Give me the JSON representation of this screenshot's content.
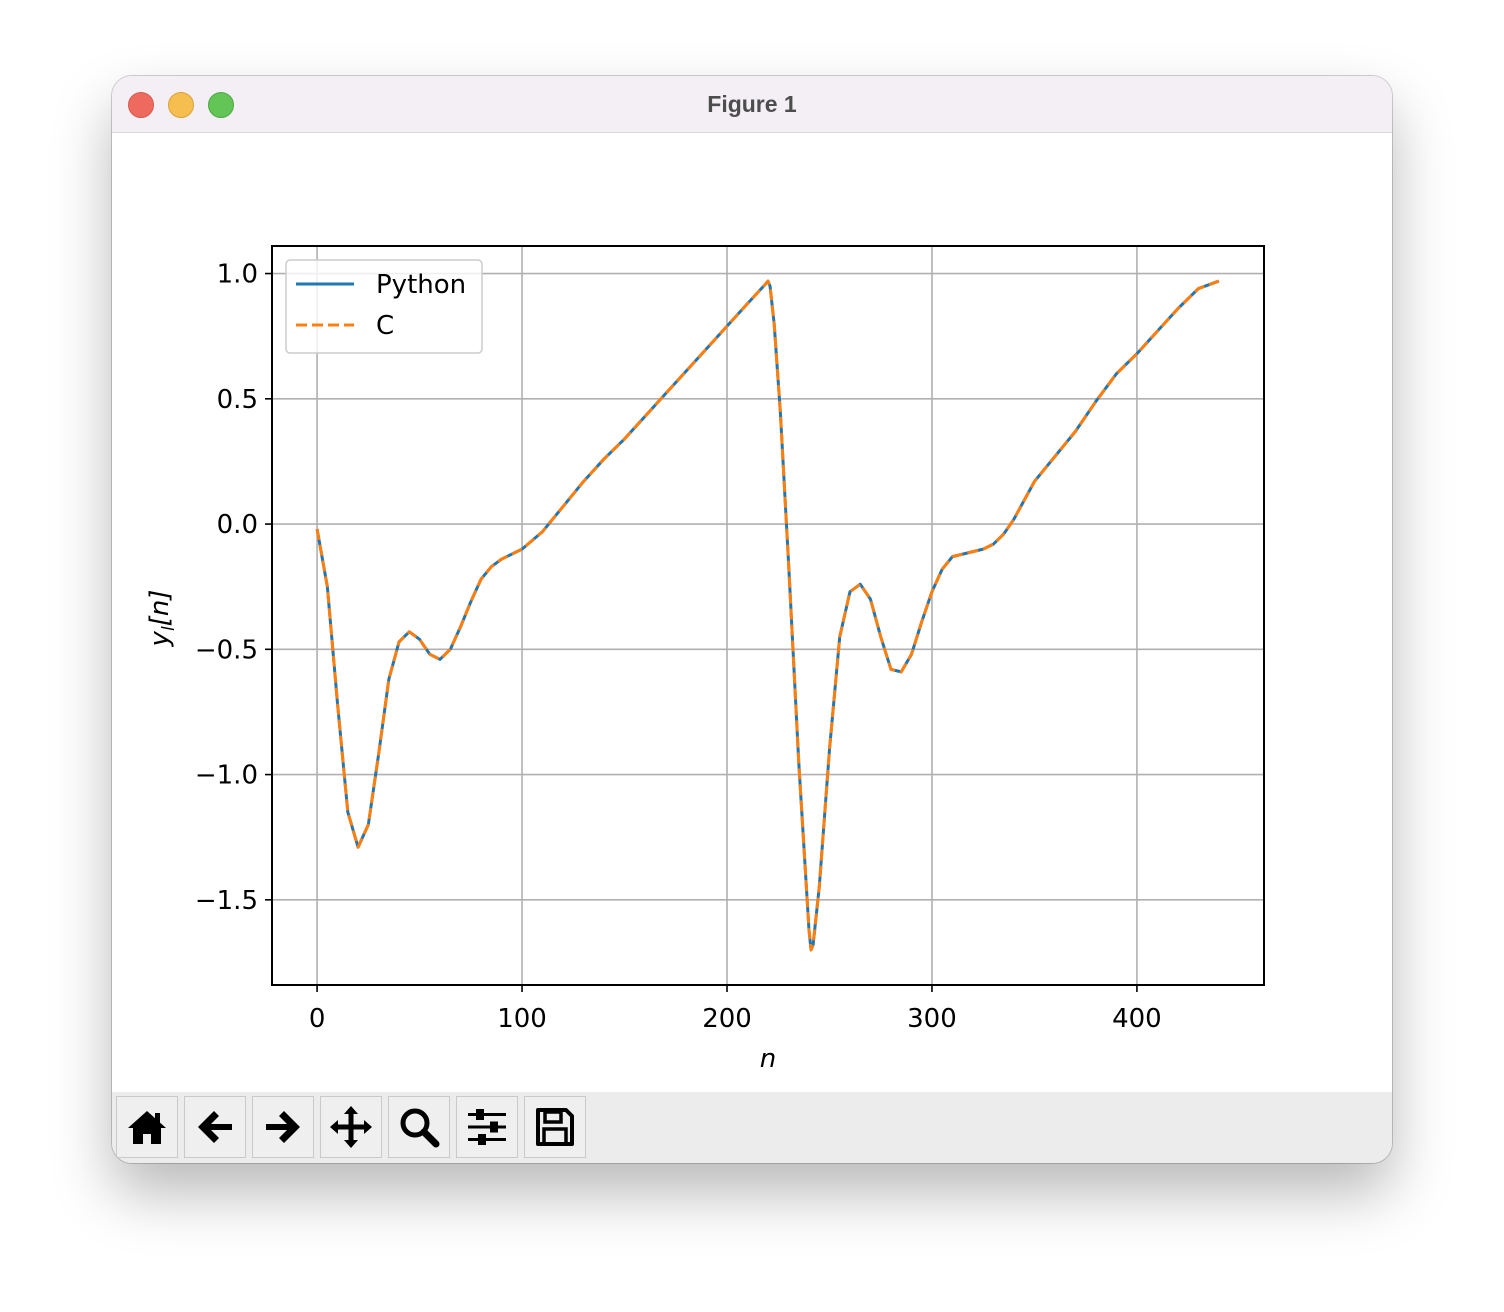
{
  "window": {
    "title": "Figure 1"
  },
  "toolbar": {
    "buttons": [
      {
        "name": "home-button",
        "icon": "home-icon"
      },
      {
        "name": "back-button",
        "icon": "arrow-left-icon"
      },
      {
        "name": "forward-button",
        "icon": "arrow-right-icon"
      },
      {
        "name": "pan-button",
        "icon": "move-icon"
      },
      {
        "name": "zoom-button",
        "icon": "magnifier-icon"
      },
      {
        "name": "configure-subplots-button",
        "icon": "sliders-icon"
      },
      {
        "name": "save-button",
        "icon": "floppy-disk-icon"
      }
    ]
  },
  "chart_data": {
    "type": "line",
    "title": "",
    "xlabel": "n",
    "ylabel_main": "y",
    "ylabel_sub": "l",
    "ylabel_tail": "[n]",
    "xlim": [
      -22,
      462
    ],
    "ylim": [
      -1.84,
      1.11
    ],
    "xticks": [
      0,
      100,
      200,
      300,
      400
    ],
    "xtick_labels": [
      "0",
      "100",
      "200",
      "300",
      "400"
    ],
    "yticks": [
      1.0,
      0.5,
      0.0,
      -0.5,
      -1.0,
      -1.5
    ],
    "ytick_labels": [
      "1.0",
      "0.5",
      "0.0",
      "−0.5",
      "−1.0",
      "−1.5"
    ],
    "grid": true,
    "legend_position": "top-left",
    "x": [
      0,
      5,
      10,
      15,
      20,
      25,
      30,
      35,
      40,
      45,
      50,
      55,
      60,
      65,
      70,
      75,
      80,
      85,
      90,
      95,
      100,
      110,
      120,
      130,
      140,
      150,
      160,
      170,
      180,
      190,
      200,
      210,
      219,
      220,
      221,
      223,
      226,
      230,
      235,
      240,
      241,
      242,
      245,
      250,
      255,
      260,
      265,
      270,
      275,
      280,
      285,
      290,
      295,
      300,
      305,
      310,
      315,
      320,
      325,
      330,
      335,
      340,
      350,
      360,
      370,
      380,
      390,
      400,
      410,
      420,
      430,
      440
    ],
    "series": [
      {
        "name": "Python",
        "color": "#1f77b4",
        "style": "solid",
        "values": [
          -0.02,
          -0.25,
          -0.72,
          -1.15,
          -1.29,
          -1.2,
          -0.92,
          -0.62,
          -0.47,
          -0.43,
          -0.46,
          -0.52,
          -0.54,
          -0.5,
          -0.41,
          -0.31,
          -0.22,
          -0.17,
          -0.14,
          -0.12,
          -0.1,
          -0.03,
          0.07,
          0.17,
          0.26,
          0.34,
          0.43,
          0.52,
          0.61,
          0.7,
          0.79,
          0.88,
          0.96,
          0.97,
          0.95,
          0.8,
          0.45,
          -0.15,
          -0.95,
          -1.62,
          -1.7,
          -1.68,
          -1.45,
          -0.9,
          -0.45,
          -0.27,
          -0.24,
          -0.3,
          -0.45,
          -0.58,
          -0.59,
          -0.52,
          -0.39,
          -0.27,
          -0.18,
          -0.13,
          -0.12,
          -0.11,
          -0.1,
          -0.08,
          -0.04,
          0.02,
          0.17,
          0.27,
          0.37,
          0.49,
          0.6,
          0.68,
          0.77,
          0.86,
          0.94,
          0.97
        ]
      },
      {
        "name": "C",
        "color": "#ff7f0e",
        "style": "dashed",
        "values": [
          -0.02,
          -0.25,
          -0.72,
          -1.15,
          -1.29,
          -1.2,
          -0.92,
          -0.62,
          -0.47,
          -0.43,
          -0.46,
          -0.52,
          -0.54,
          -0.5,
          -0.41,
          -0.31,
          -0.22,
          -0.17,
          -0.14,
          -0.12,
          -0.1,
          -0.03,
          0.07,
          0.17,
          0.26,
          0.34,
          0.43,
          0.52,
          0.61,
          0.7,
          0.79,
          0.88,
          0.96,
          0.97,
          0.95,
          0.8,
          0.45,
          -0.15,
          -0.95,
          -1.62,
          -1.7,
          -1.68,
          -1.45,
          -0.9,
          -0.45,
          -0.27,
          -0.24,
          -0.3,
          -0.45,
          -0.58,
          -0.59,
          -0.52,
          -0.39,
          -0.27,
          -0.18,
          -0.13,
          -0.12,
          -0.11,
          -0.1,
          -0.08,
          -0.04,
          0.02,
          0.17,
          0.27,
          0.37,
          0.49,
          0.6,
          0.68,
          0.77,
          0.86,
          0.94,
          0.97
        ]
      }
    ]
  }
}
